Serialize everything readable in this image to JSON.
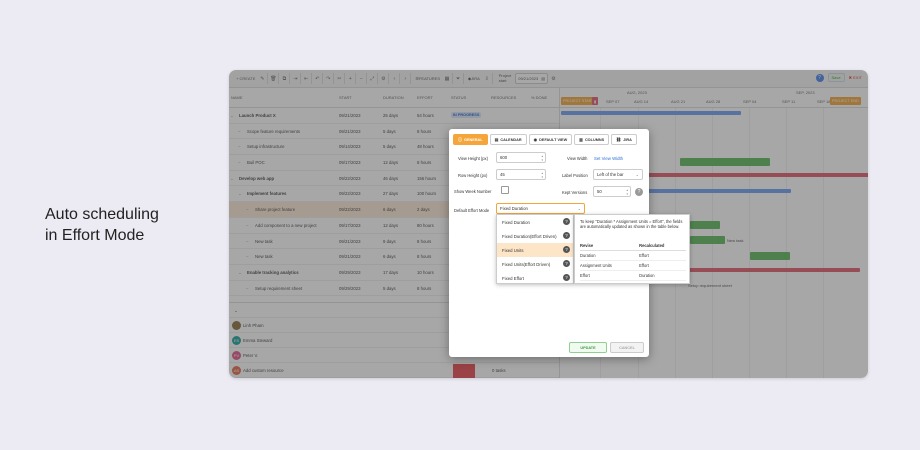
{
  "caption": "Auto scheduling\nin Effort Mode",
  "toolbar": {
    "create_label": "+ CREATE",
    "features_label": "FEATURES",
    "jira_label": "JIRA",
    "project_start_label": "Project\nstart",
    "project_start_date": "09/21/2023",
    "save_label": "Save",
    "exit_label": "EXIT"
  },
  "grid": {
    "columns": {
      "name": "NAME",
      "start": "START",
      "duration": "DURATION",
      "effort": "EFFORT",
      "status": "STATUS",
      "resources": "RESOURCES",
      "score": "% DONE"
    },
    "rows": [
      {
        "name": "Launch Product X",
        "start": "09/21/2023",
        "duration": "25 days",
        "effort": "54 hours",
        "status": "IN PROGRESS",
        "bold": true,
        "indent": 0
      },
      {
        "name": "Scope feature requirements",
        "start": "09/21/2023",
        "duration": "5 days",
        "effort": "8 hours",
        "bold": false,
        "indent": 1
      },
      {
        "name": "Setup infrastructure",
        "start": "09/14/2023",
        "duration": "5 days",
        "effort": "48 hours",
        "bold": false,
        "indent": 1
      },
      {
        "name": "Buil POC",
        "start": "09/17/2023",
        "duration": "12 days",
        "effort": "8 hours",
        "bold": false,
        "indent": 1
      },
      {
        "name": "Develop web app",
        "start": "09/22/2023",
        "duration": "46 days",
        "effort": "156 hours",
        "bold": true,
        "indent": 0
      },
      {
        "name": "Implement features",
        "start": "09/22/2023",
        "duration": "27 days",
        "effort": "100 hours",
        "bold": true,
        "indent": 1
      },
      {
        "name": "Share project feature",
        "start": "09/22/2023",
        "duration": "6 days",
        "effort": "2 days",
        "bold": false,
        "indent": 2
      },
      {
        "name": "Add component to a new project",
        "start": "09/17/2023",
        "duration": "12 days",
        "effort": "80 hours",
        "bold": false,
        "indent": 2
      },
      {
        "name": "New task",
        "start": "09/21/2023",
        "duration": "9 days",
        "effort": "8 hours",
        "bold": false,
        "indent": 2
      },
      {
        "name": "New task",
        "start": "09/21/2023",
        "duration": "6 days",
        "effort": "8 hours",
        "bold": false,
        "indent": 2
      },
      {
        "name": "Enable tracking analytics",
        "start": "09/29/2023",
        "duration": "17 days",
        "effort": "10 hours",
        "bold": true,
        "indent": 1
      },
      {
        "name": "Setup requirement sheet",
        "start": "09/29/2023",
        "duration": "5 days",
        "effort": "8 hours",
        "bold": false,
        "indent": 2
      }
    ]
  },
  "resources": [
    {
      "name": "Linh Pham",
      "initials": "",
      "color": "#8a6d3b"
    },
    {
      "name": "Emma Steward",
      "initials": "ES",
      "color": "#1aa39b"
    },
    {
      "name": "Peter V.",
      "initials": "PV",
      "color": "#e0578a"
    },
    {
      "name": "Add custom resource",
      "initials": "AS",
      "color": "#e8684a",
      "count": "0 tasks"
    }
  ],
  "gantt": {
    "months": [
      "AUG, 2023",
      "SEP, 2023"
    ],
    "weeks": [
      "SEP 07",
      "AUG 14",
      "AUG 21",
      "AUG 28",
      "SEP 04",
      "SEP 11",
      "SEP 18"
    ],
    "chip_project_start": "PROJECT START",
    "chip_project_end": "PROJECT END",
    "new_task_label": "New task",
    "setup_label": "Setup requirement sheet"
  },
  "modal": {
    "tabs": [
      "GENERAL",
      "CALENDAR",
      "DEFAULT VIEW",
      "COLUMNS",
      "JIRA"
    ],
    "view_height_label": "View Height (px)",
    "view_height_value": "600",
    "row_height_label": "Row Height (px)",
    "row_height_value": "45",
    "show_week_label": "Show Week Number",
    "view_width_label": "View Width",
    "view_width_link": "Set View Width",
    "label_position_label": "Label Position",
    "label_position_value": "Left of the bar",
    "kept_versions_label": "Kept Versions",
    "kept_versions_value": "50",
    "effort_mode_label": "Default Effort Mode",
    "effort_mode_value": "Fixed Duration",
    "update_label": "UPDATE",
    "cancel_label": "CANCEL"
  },
  "dropdown": {
    "options": [
      "Fixed Duration",
      "Fixed Duration(Effort Driven)",
      "Fixed Units",
      "Fixed Units(Effort Driven)",
      "Fixed Effort"
    ],
    "selected_index": 2
  },
  "tooltip": {
    "text": "To keep \"Duration * Assignment Units = Effort\", the fields are automatically updated as shown in the table below.",
    "col_revise": "Revise",
    "col_recalculated": "Recalculated",
    "rows": [
      {
        "revise": "Duration",
        "recalc": "Effort"
      },
      {
        "revise": "Assignment Units",
        "recalc": "Effort"
      },
      {
        "revise": "Effort",
        "recalc": "Duration"
      }
    ]
  },
  "colors": {
    "accent": "#f4a63a",
    "green": "#5cb85c",
    "blue": "#6e9ef0",
    "red": "#e05c6a"
  }
}
